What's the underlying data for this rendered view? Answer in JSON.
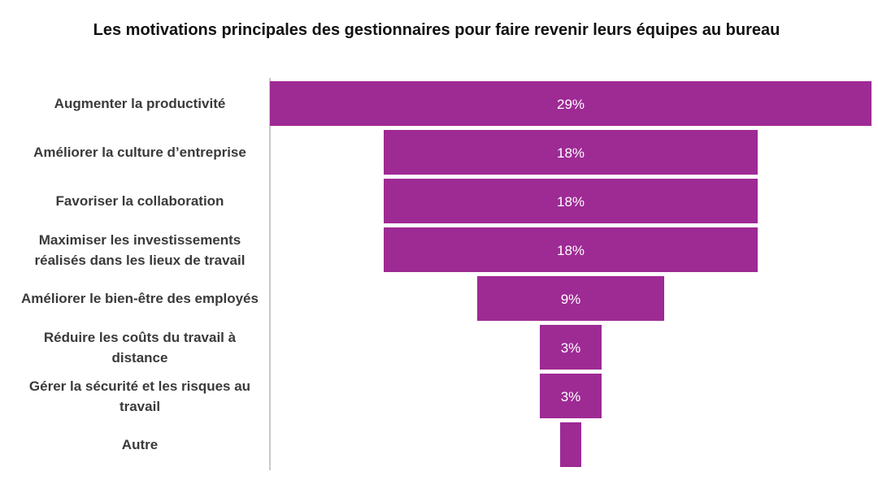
{
  "chart_data": {
    "type": "bar",
    "subtype": "funnel",
    "title": "Les motivations principales des gestionnaires pour faire revenir leurs équipes au bureau",
    "categories": [
      "Augmenter la productivité",
      "Améliorer la culture d’entreprise",
      "Favoriser la collaboration",
      "Maximiser les investissements réalisés dans les lieux de travail",
      "Améliorer le bien-être des employés",
      "Réduire les coûts du travail à distance",
      "Gérer la sécurité et les risques au travail",
      "Autre"
    ],
    "values": [
      29,
      18,
      18,
      18,
      9,
      3,
      3,
      1
    ],
    "data_labels": [
      "29%",
      "18%",
      "18%",
      "18%",
      "9%",
      "3%",
      "3%",
      ""
    ],
    "unit": "%",
    "xlabel": "",
    "ylabel": "",
    "color": "#9e2a94",
    "label_color": "#ffffff",
    "grid": false,
    "legend": "none"
  }
}
